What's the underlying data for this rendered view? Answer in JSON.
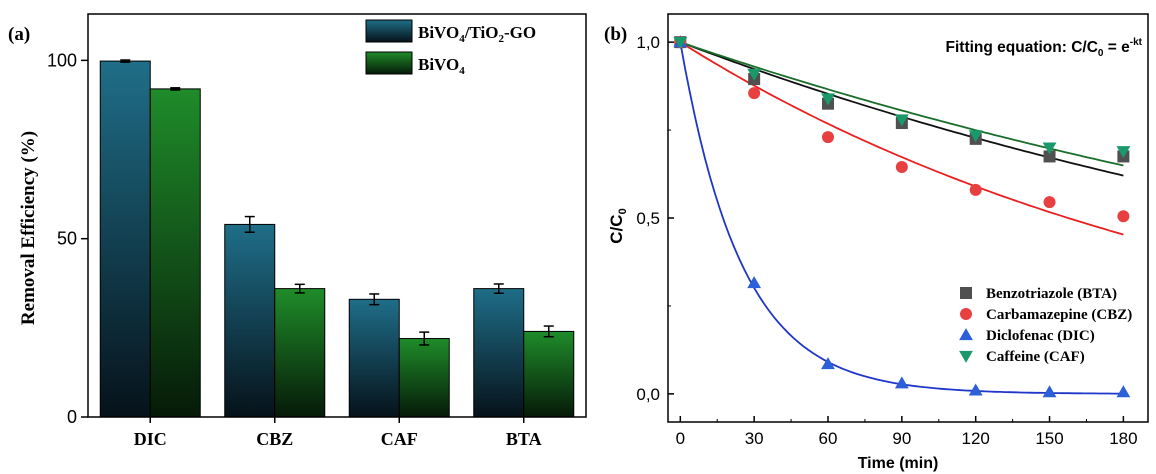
{
  "chart_data": [
    {
      "panel_label": "(a)",
      "type": "bar",
      "categories": [
        "DIC",
        "CBZ",
        "CAF",
        "BTA"
      ],
      "ylabel": "Removal Efficiency (%)",
      "ylim": [
        0,
        113
      ],
      "yticks": [
        0,
        50,
        100
      ],
      "legend_position": "top-right",
      "series": [
        {
          "name": "BiVO4/TiO2-GO",
          "name_main": "BiVO",
          "name_sub1": "4",
          "name_mid": "/TiO",
          "name_sub2": "2",
          "name_tail": "-GO",
          "color": "#1f6e86",
          "values": [
            99.8,
            54,
            33,
            36
          ],
          "errors": [
            0.3,
            2.2,
            1.5,
            1.3
          ]
        },
        {
          "name": "BiVO4",
          "name_main": "BiVO",
          "name_sub1": "4",
          "name_mid": "",
          "name_sub2": "",
          "name_tail": "",
          "color": "#1f8a2a",
          "values": [
            92,
            36,
            22,
            24
          ],
          "errors": [
            0.3,
            1.2,
            1.8,
            1.5
          ]
        }
      ]
    },
    {
      "panel_label": "(b)",
      "type": "scatter",
      "xlabel": "Time (min)",
      "ylabel_main": "C/C",
      "ylabel_sub": "0",
      "xlim": [
        -5,
        190
      ],
      "ylim": [
        -0.08,
        1.08
      ],
      "xticks": [
        0,
        30,
        60,
        90,
        120,
        150,
        180
      ],
      "ytick_values": [
        0.0,
        0.5,
        1.0
      ],
      "ytick_labels": [
        "0,0",
        "0,5",
        "1,0"
      ],
      "annotation": {
        "text": "Fitting equation: C/C",
        "sub": "0",
        "text2": " = e",
        "sup": "-kt"
      },
      "legend_position": "lower-right",
      "series": [
        {
          "name": "Benzotriazole (BTA)",
          "marker": "square",
          "color": "#505050",
          "fit_color": "#111111",
          "k": 0.00265,
          "x": [
            0,
            30,
            60,
            90,
            120,
            150,
            180
          ],
          "y": [
            1.0,
            0.895,
            0.825,
            0.77,
            0.725,
            0.675,
            0.675
          ]
        },
        {
          "name": "Carbamazepine (CBZ)",
          "marker": "circle",
          "color": "#e84040",
          "fit_color": "#e8201f",
          "k": 0.0044,
          "x": [
            0,
            30,
            60,
            90,
            120,
            150,
            180
          ],
          "y": [
            1.0,
            0.855,
            0.73,
            0.645,
            0.58,
            0.545,
            0.505
          ]
        },
        {
          "name": "Diclofenac (DIC)",
          "marker": "triangle-up",
          "color": "#2d5fd8",
          "fit_color": "#1f37c8",
          "k": 0.04,
          "x": [
            0,
            30,
            60,
            90,
            120,
            150,
            180
          ],
          "y": [
            1.0,
            0.315,
            0.085,
            0.03,
            0.01,
            0.005,
            0.005
          ]
        },
        {
          "name": "Caffeine (CAF)",
          "marker": "triangle-down",
          "color": "#1a9a6a",
          "fit_color": "#1a6e2a",
          "k": 0.0024,
          "x": [
            0,
            30,
            60,
            90,
            120,
            150,
            180
          ],
          "y": [
            1.0,
            0.91,
            0.84,
            0.78,
            0.735,
            0.7,
            0.69
          ]
        }
      ]
    }
  ]
}
